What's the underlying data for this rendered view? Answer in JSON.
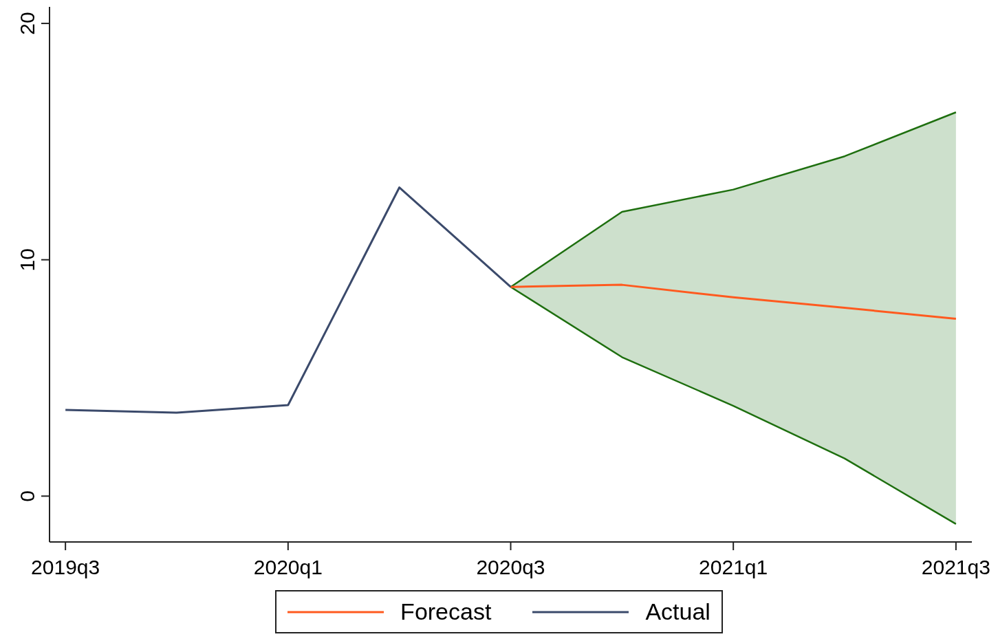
{
  "chart_data": {
    "type": "line",
    "categories": [
      "2019q3",
      null,
      "2020q1",
      null,
      "2020q3",
      null,
      "2021q1",
      null,
      "2021q3"
    ],
    "series": [
      {
        "name": "Forecast",
        "color": "#ff5a1f",
        "values": [
          null,
          null,
          null,
          null,
          8.85,
          8.94,
          8.41,
          7.97,
          7.5
        ],
        "lower": [
          null,
          null,
          null,
          null,
          8.85,
          5.88,
          3.82,
          1.59,
          -1.18
        ],
        "upper": [
          null,
          null,
          null,
          null,
          8.85,
          12.03,
          12.97,
          14.38,
          16.24
        ]
      },
      {
        "name": "Actual",
        "color": "#3b4a6b",
        "values": [
          3.65,
          3.53,
          3.85,
          13.06,
          8.85,
          null,
          null,
          null,
          null
        ]
      },
      {
        "color": "#1e6f0f",
        "values": [
          null,
          null,
          null,
          null,
          8.85,
          12.03,
          12.97,
          14.38,
          16.24
        ]
      },
      {
        "color": "#1e6f0f",
        "values": [
          null,
          null,
          null,
          null,
          8.85,
          5.88,
          3.82,
          1.59,
          -1.18
        ]
      }
    ],
    "ylim": [
      -1.94,
      20.7
    ],
    "yticks": [
      0,
      10,
      20
    ],
    "grid": false,
    "legend": "bottom",
    "marker": "none",
    "line_style": "solid"
  }
}
